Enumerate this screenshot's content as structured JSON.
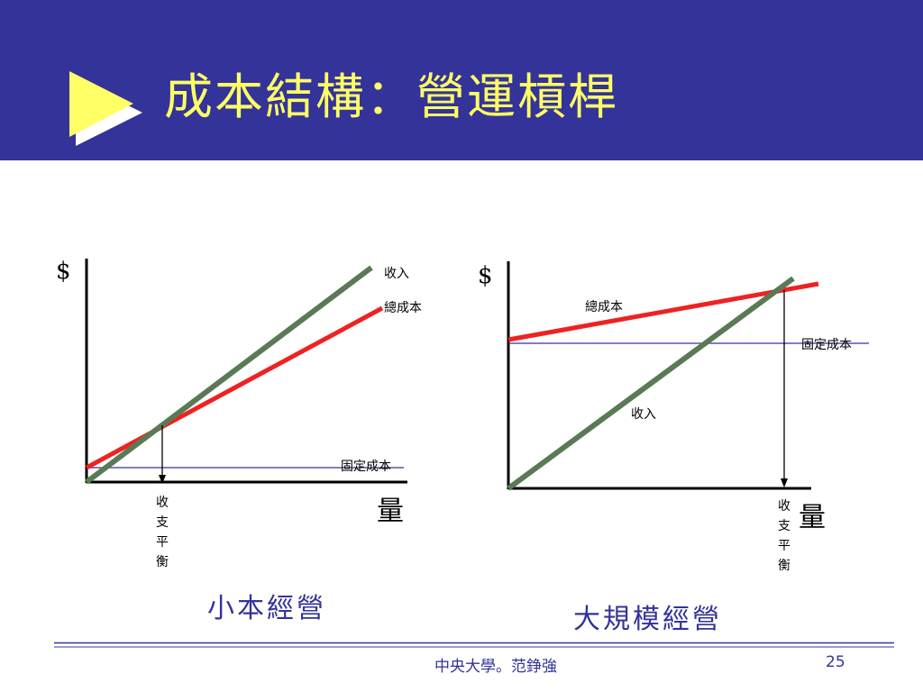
{
  "slide": {
    "title": "成本結構：營運槓桿",
    "colors": {
      "header_bg": "#333399",
      "title_text": "#ffff66",
      "revenue_line": "#5a7a55",
      "total_cost_line": "#ee2222",
      "fixed_cost_line": "#333399"
    }
  },
  "left_diagram": {
    "y_label": "$",
    "x_label": "量",
    "revenue_label": "收入",
    "total_cost_label": "總成本",
    "fixed_cost_label": "固定成本",
    "breakeven_label": [
      "收",
      "支",
      "平",
      "衡"
    ],
    "caption": "小本經營"
  },
  "right_diagram": {
    "y_label": "$",
    "x_label": "量",
    "revenue_label": "收入",
    "total_cost_label": "總成本",
    "fixed_cost_label": "固定成本",
    "breakeven_label": [
      "收",
      "支",
      "平",
      "衡"
    ],
    "caption": "大規模經營"
  },
  "footer": {
    "author": "中央大學。范錚強",
    "page_number": "25"
  }
}
